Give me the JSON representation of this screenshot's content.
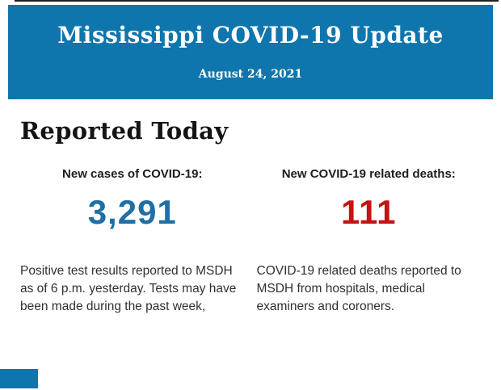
{
  "page": {
    "background": "#ffffff",
    "top_rule_color": "#1f1f1d"
  },
  "header": {
    "background_color": "#0e76ad",
    "text_color": "#ffffff",
    "title": "Mississippi COVID-19 Update",
    "date": "August 24, 2021"
  },
  "section": {
    "heading": "Reported Today"
  },
  "stats": {
    "0": {
      "label": "New cases of COVID-19:",
      "value": "3,291",
      "value_color": "#1e6fa6",
      "description": "Positive test results reported to MSDH as of 6 p.m. yesterday. Tests may have been made during the past week,"
    },
    "1": {
      "label": "New COVID-19 related deaths:",
      "value": "111",
      "value_color": "#c51212",
      "description": "COVID-19 related deaths reported to MSDH from hospitals, medical examiners and coroners."
    }
  },
  "footer": {
    "background_color": "#0e76ad"
  }
}
